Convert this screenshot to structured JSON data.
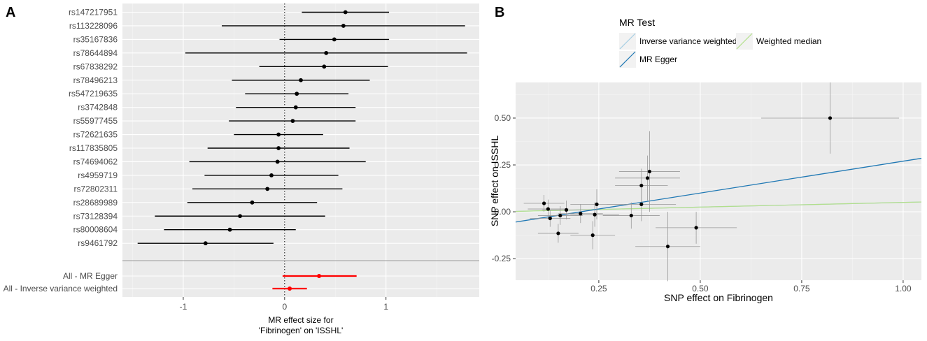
{
  "colors": {
    "panel_bg": "#ebebeb",
    "grid_major": "#ffffff",
    "point": "#000000",
    "summary": "#ff0000",
    "ivw": "#a6cee3",
    "egger": "#1f78b4",
    "median": "#b2df8a",
    "se_line": "#999999"
  },
  "panel_a": {
    "label": "A",
    "chart_data": {
      "type": "forest",
      "xlabel_lines": [
        "MR effect size for",
        "'Fibrinogen' on 'ISSHL'"
      ],
      "xlim": [
        -1.6,
        1.92
      ],
      "xticks": [
        -1,
        0,
        1
      ],
      "xtick_labels": [
        "-1",
        "0",
        "1"
      ],
      "snps": [
        {
          "name": "rs147217951",
          "b": 0.6,
          "lo": 0.17,
          "hi": 1.03
        },
        {
          "name": "rs113228096",
          "b": 0.58,
          "lo": -0.62,
          "hi": 1.78
        },
        {
          "name": "rs35167836",
          "b": 0.49,
          "lo": -0.05,
          "hi": 1.03
        },
        {
          "name": "rs78644894",
          "b": 0.41,
          "lo": -0.98,
          "hi": 1.8
        },
        {
          "name": "rs67838292",
          "b": 0.39,
          "lo": -0.25,
          "hi": 1.02
        },
        {
          "name": "rs78496213",
          "b": 0.16,
          "lo": -0.52,
          "hi": 0.84
        },
        {
          "name": "rs547219635",
          "b": 0.12,
          "lo": -0.39,
          "hi": 0.63
        },
        {
          "name": "rs3742848",
          "b": 0.11,
          "lo": -0.48,
          "hi": 0.7
        },
        {
          "name": "rs55977455",
          "b": 0.08,
          "lo": -0.55,
          "hi": 0.7
        },
        {
          "name": "rs72621635",
          "b": -0.06,
          "lo": -0.5,
          "hi": 0.38
        },
        {
          "name": "rs117835805",
          "b": -0.06,
          "lo": -0.76,
          "hi": 0.64
        },
        {
          "name": "rs74694062",
          "b": -0.07,
          "lo": -0.94,
          "hi": 0.8
        },
        {
          "name": "rs4959719",
          "b": -0.13,
          "lo": -0.79,
          "hi": 0.53
        },
        {
          "name": "rs72802311",
          "b": -0.17,
          "lo": -0.91,
          "hi": 0.57
        },
        {
          "name": "rs28689989",
          "b": -0.32,
          "lo": -0.96,
          "hi": 0.32
        },
        {
          "name": "rs73128394",
          "b": -0.44,
          "lo": -1.28,
          "hi": 0.4
        },
        {
          "name": "rs80008604",
          "b": -0.54,
          "lo": -1.19,
          "hi": 0.11
        },
        {
          "name": "rs9461792",
          "b": -0.78,
          "lo": -1.45,
          "hi": -0.11
        }
      ],
      "summary": [
        {
          "name": "All - MR Egger",
          "b": 0.34,
          "lo": -0.02,
          "hi": 0.71
        },
        {
          "name": "All - Inverse variance weighted",
          "b": 0.05,
          "lo": -0.12,
          "hi": 0.22
        }
      ]
    }
  },
  "panel_b": {
    "label": "B",
    "chart_data": {
      "type": "scatter",
      "xlabel": "SNP effect on Fibrinogen",
      "ylabel": "SNP effect on ISSHL",
      "xlim": [
        0.045,
        1.045
      ],
      "ylim": [
        -0.365,
        0.69
      ],
      "xticks": [
        0.25,
        0.5,
        0.75,
        1.0
      ],
      "xtick_labels": [
        "0.25",
        "0.50",
        "0.75",
        "1.00"
      ],
      "yticks": [
        -0.25,
        0.0,
        0.25,
        0.5
      ],
      "ytick_labels": [
        "-0.25",
        "0.00",
        "0.25",
        "0.50"
      ],
      "legend": {
        "title": "MR Test",
        "items": [
          {
            "key": "ivw",
            "label": "Inverse variance weighted"
          },
          {
            "key": "median",
            "label": "Weighted median"
          },
          {
            "key": "egger",
            "label": "MR Egger"
          }
        ]
      },
      "lines": {
        "egger": {
          "intercept": -0.07,
          "slope": 0.34
        },
        "ivw": {
          "intercept": 0.0,
          "slope": 0.05
        },
        "median": {
          "intercept": 0.0,
          "slope": 0.05
        }
      },
      "points": [
        {
          "x": 0.82,
          "y": 0.5,
          "xlo": 0.65,
          "xhi": 0.99,
          "ylo": 0.31,
          "yhi": 0.69
        },
        {
          "x": 0.115,
          "y": 0.045,
          "xlo": 0.065,
          "xhi": 0.165,
          "ylo": 0.0,
          "yhi": 0.09
        },
        {
          "x": 0.125,
          "y": 0.015,
          "xlo": 0.075,
          "xhi": 0.175,
          "ylo": -0.035,
          "yhi": 0.065
        },
        {
          "x": 0.13,
          "y": -0.035,
          "xlo": 0.08,
          "xhi": 0.18,
          "ylo": -0.08,
          "yhi": 0.01
        },
        {
          "x": 0.15,
          "y": -0.115,
          "xlo": 0.1,
          "xhi": 0.2,
          "ylo": -0.165,
          "yhi": -0.065
        },
        {
          "x": 0.155,
          "y": -0.02,
          "xlo": 0.1,
          "xhi": 0.21,
          "ylo": -0.07,
          "yhi": 0.03
        },
        {
          "x": 0.17,
          "y": 0.01,
          "xlo": 0.11,
          "xhi": 0.23,
          "ylo": -0.04,
          "yhi": 0.06
        },
        {
          "x": 0.205,
          "y": -0.01,
          "xlo": 0.15,
          "xhi": 0.26,
          "ylo": -0.06,
          "yhi": 0.04
        },
        {
          "x": 0.235,
          "y": -0.125,
          "xlo": 0.18,
          "xhi": 0.29,
          "ylo": -0.2,
          "yhi": -0.05
        },
        {
          "x": 0.24,
          "y": -0.015,
          "xlo": 0.18,
          "xhi": 0.3,
          "ylo": -0.08,
          "yhi": 0.05
        },
        {
          "x": 0.245,
          "y": 0.04,
          "xlo": 0.18,
          "xhi": 0.31,
          "ylo": -0.04,
          "yhi": 0.12
        },
        {
          "x": 0.33,
          "y": -0.02,
          "xlo": 0.26,
          "xhi": 0.4,
          "ylo": -0.09,
          "yhi": 0.05
        },
        {
          "x": 0.355,
          "y": 0.04,
          "xlo": 0.27,
          "xhi": 0.44,
          "ylo": -0.05,
          "yhi": 0.13
        },
        {
          "x": 0.355,
          "y": 0.14,
          "xlo": 0.29,
          "xhi": 0.42,
          "ylo": 0.05,
          "yhi": 0.23
        },
        {
          "x": 0.37,
          "y": 0.18,
          "xlo": 0.29,
          "xhi": 0.45,
          "ylo": 0.06,
          "yhi": 0.3
        },
        {
          "x": 0.375,
          "y": 0.215,
          "xlo": 0.3,
          "xhi": 0.45,
          "ylo": 0.0,
          "yhi": 0.43
        },
        {
          "x": 0.42,
          "y": -0.185,
          "xlo": 0.34,
          "xhi": 0.5,
          "ylo": -0.37,
          "yhi": 0.0
        },
        {
          "x": 0.49,
          "y": -0.085,
          "xlo": 0.39,
          "xhi": 0.59,
          "ylo": -0.17,
          "yhi": 0.0
        }
      ]
    }
  }
}
